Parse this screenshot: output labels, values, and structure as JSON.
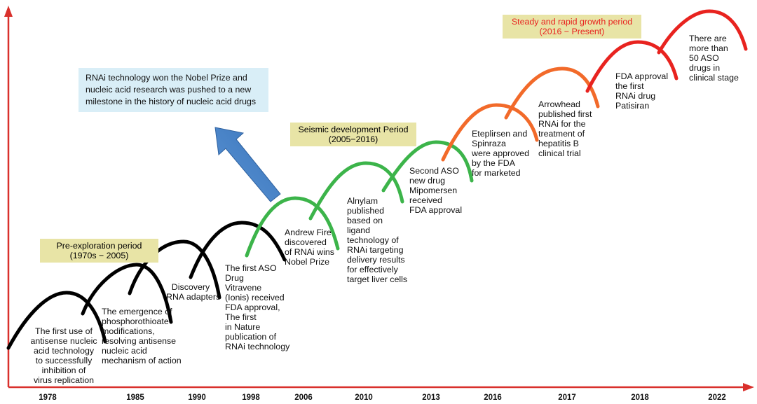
{
  "periods": {
    "pre_exploration": [
      "Pre-exploration period",
      "(1970s − 2005)"
    ],
    "seismic": [
      "Seismic development Period",
      "(2005−2016)"
    ],
    "steady": [
      "Steady and rapid growth period",
      "(2016 − Present)"
    ]
  },
  "callout": [
    "RNAi technology won the Nobel Prize and",
    "nucleic acid research was pushed to a new",
    "milestone in the history of nucleic acid drugs"
  ],
  "milestones": {
    "m1": [
      "The first use of",
      "antisense nucleic",
      "acid technology",
      "to successfully",
      "inhibition of",
      "virus replication"
    ],
    "m2": [
      "The emergence of",
      "phosphorothioate",
      "modifications,",
      "resolving antisense",
      "nucleic acid",
      "mechanism of action"
    ],
    "m3": [
      "Discovery",
      "RNA adapters"
    ],
    "m4": [
      "The first ASO",
      "Drug",
      "Vitravene",
      "(Ionis) received",
      "FDA approval,",
      "The first",
      "in Nature",
      "publication of",
      "RNAi technology"
    ],
    "m5": [
      "Andrew Fire",
      "discovered",
      "of RNAi wins",
      "Nobel Prize"
    ],
    "m6": [
      "Alnylam",
      "published",
      "based on",
      "ligand",
      "technology of",
      "RNAi targeting",
      "delivery results",
      "for effectively",
      "target liver cells"
    ],
    "m7": [
      "Second ASO",
      "new drug",
      "Mipomersen",
      "received",
      "FDA approval"
    ],
    "m8": [
      "Eteplirsen and",
      "Spinraza",
      "were approved",
      "by the FDA",
      "for marketed"
    ],
    "m9": [
      "Arrowhead",
      "published first",
      "RNAi for the",
      "treatment of",
      "hepatitis B",
      "clinical trial"
    ],
    "m10": [
      "FDA approval",
      "the first",
      "RNAi drug",
      "Patisiran"
    ],
    "m11": [
      "There are",
      "more than",
      "50 ASO",
      "drugs in",
      "clinical stage"
    ]
  },
  "years": [
    "1978",
    "1985",
    "1990",
    "1998",
    "2006",
    "2010",
    "2013",
    "2016",
    "2017",
    "2018",
    "2022"
  ],
  "colors": {
    "axis": "#d9302c",
    "arc_black": "#000000",
    "arc_green": "#3cb44a",
    "arc_orange": "#f26a2a",
    "arc_red": "#e8231f",
    "period_box": "#e8e4a6",
    "callout_box": "#d9eef7",
    "arrow": "#4a86c8",
    "steady_text": "#e8231f"
  }
}
